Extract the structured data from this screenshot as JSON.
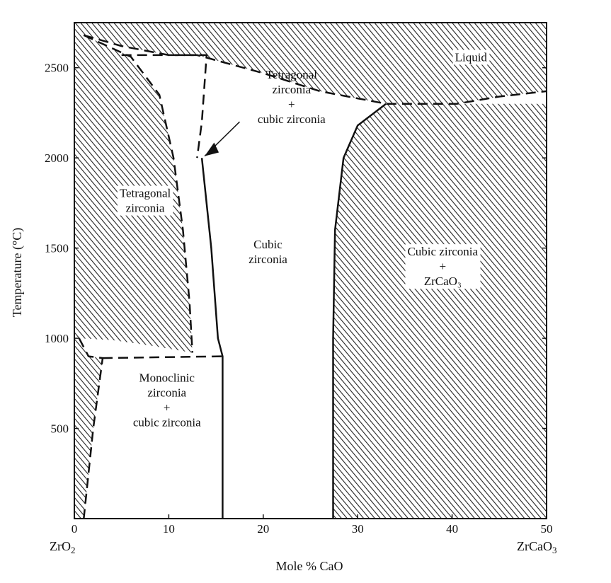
{
  "chart_data": {
    "type": "phase-diagram",
    "xlabel": "Mole % CaO",
    "ylabel": "Temperature (°C)",
    "xlim": [
      0,
      50
    ],
    "ylim": [
      0,
      2750
    ],
    "x_ticks": [
      0,
      10,
      20,
      30,
      40,
      50
    ],
    "y_ticks": [
      500,
      1000,
      1500,
      2000,
      2500
    ],
    "x_end_labels": {
      "left": "ZrO",
      "left_sub": "2",
      "right": "ZrCaO",
      "right_sub": "3"
    },
    "regions": [
      {
        "id": "liquid",
        "lines": [
          "Liquid"
        ]
      },
      {
        "id": "tetragonal",
        "lines": [
          "Tetragonal",
          "zirconia"
        ]
      },
      {
        "id": "tetragonal-cubic",
        "lines": [
          "Tetragonal",
          "zirconia",
          "+",
          "cubic zirconia"
        ]
      },
      {
        "id": "cubic",
        "lines": [
          "Cubic",
          "zirconia"
        ]
      },
      {
        "id": "cubic-zrcao3",
        "lines": [
          "Cubic zirconia",
          "+",
          "ZrCaO₃"
        ]
      },
      {
        "id": "monoclinic-cubic",
        "lines": [
          "Monoclinic",
          "zirconia",
          "+",
          "cubic zirconia"
        ]
      }
    ],
    "boundaries": [
      {
        "name": "liquidus",
        "style": "dashed",
        "points": [
          [
            1,
            2680
          ],
          [
            5,
            2620
          ],
          [
            10,
            2570
          ],
          [
            13,
            2570
          ],
          [
            20,
            2470
          ],
          [
            26,
            2370
          ],
          [
            33,
            2300
          ],
          [
            40.5,
            2300
          ],
          [
            45,
            2340
          ],
          [
            50,
            2370
          ]
        ]
      },
      {
        "name": "tetragonal-limit",
        "style": "dashed",
        "points": [
          [
            1,
            2680
          ],
          [
            6,
            2560
          ],
          [
            9,
            2350
          ],
          [
            10.5,
            2000
          ],
          [
            11.5,
            1600
          ],
          [
            12.2,
            1200
          ],
          [
            12.5,
            920
          ]
        ]
      },
      {
        "name": "cubic-upper-dashed",
        "style": "dashed",
        "points": [
          [
            5,
            2570
          ],
          [
            14,
            2570
          ],
          [
            13.5,
            2200
          ],
          [
            13,
            2000
          ]
        ]
      },
      {
        "name": "cubic-left-solid",
        "style": "solid",
        "points": [
          [
            13.5,
            2000
          ],
          [
            14.5,
            1500
          ],
          [
            15.2,
            1000
          ],
          [
            15.7,
            900
          ],
          [
            15.7,
            0
          ]
        ]
      },
      {
        "name": "cubic-right-solid",
        "style": "solid",
        "points": [
          [
            33,
            2300
          ],
          [
            30,
            2180
          ],
          [
            28.5,
            2000
          ],
          [
            27.6,
            1600
          ],
          [
            27.4,
            1000
          ],
          [
            27.4,
            0
          ]
        ]
      },
      {
        "name": "eutectoid",
        "style": "dashed",
        "points": [
          [
            3,
            890
          ],
          [
            15.7,
            900
          ]
        ]
      },
      {
        "name": "monoclinic-limit",
        "style": "dashed",
        "points": [
          [
            0.5,
            1000
          ],
          [
            1.5,
            900
          ],
          [
            3,
            890
          ],
          [
            2,
            500
          ],
          [
            1,
            0
          ]
        ]
      }
    ]
  }
}
